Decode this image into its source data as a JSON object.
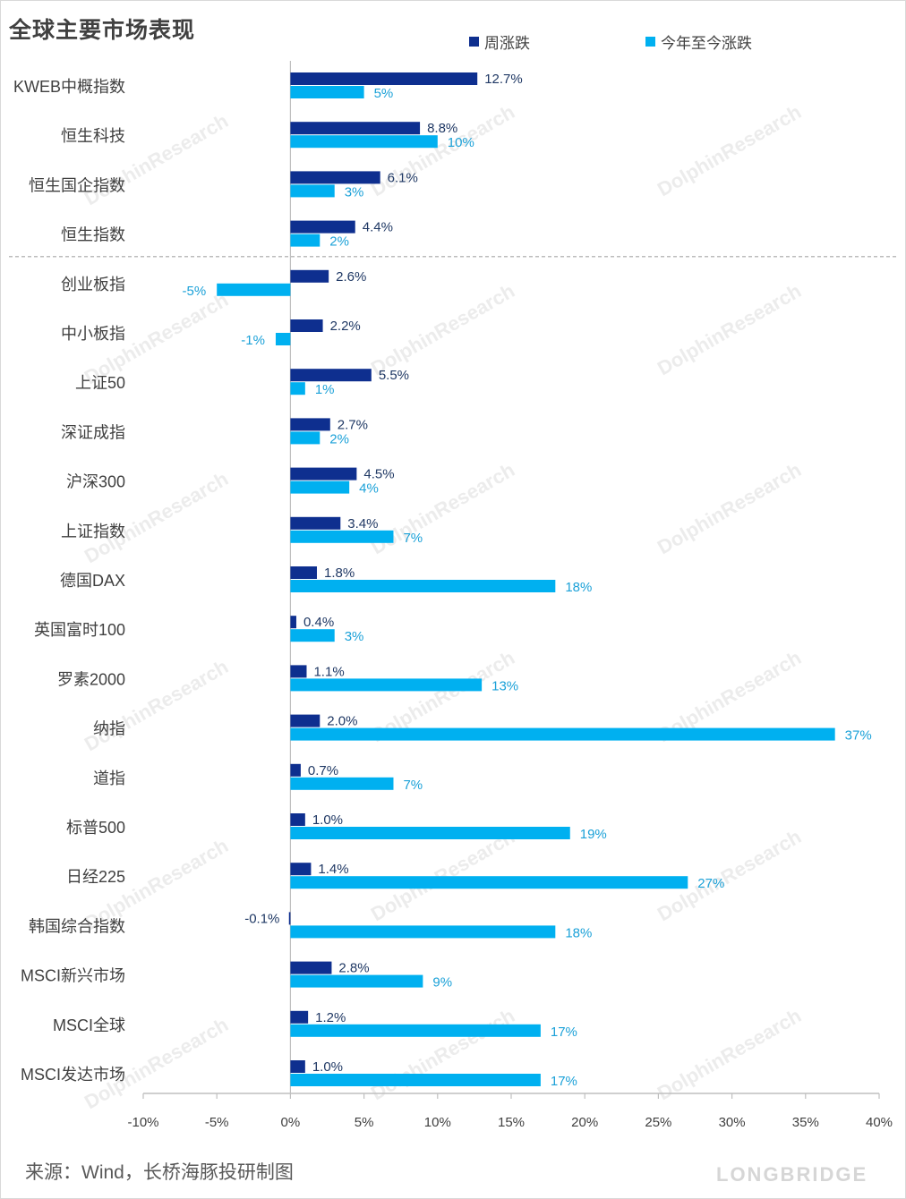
{
  "header": {
    "title": "全球主要市场表现"
  },
  "footer": {
    "source": "来源：Wind，长桥海豚投研制图",
    "brand": "LONGBRIDGE"
  },
  "watermark": {
    "text": "DolphinResearch"
  },
  "colors": {
    "weekly": "#0e2f8f",
    "ytd": "#00b0f0",
    "axis": "#bfbfbf",
    "divider": "#a6a6a6"
  },
  "chart_data": {
    "type": "bar",
    "orientation": "horizontal",
    "title": "全球主要市场表现",
    "categories": [
      "KWEB中概指数",
      "恒生科技",
      "恒生国企指数",
      "恒生指数",
      "创业板指",
      "中小板指",
      "上证50",
      "深证成指",
      "沪深300",
      "上证指数",
      "德国DAX",
      "英国富时100",
      "罗素2000",
      "纳指",
      "道指",
      "标普500",
      "日经225",
      "韩国综合指数",
      "MSCI新兴市场",
      "MSCI全球",
      "MSCI发达市场"
    ],
    "series": [
      {
        "name": "周涨跌",
        "values": [
          12.7,
          8.8,
          6.1,
          4.4,
          2.6,
          2.2,
          5.5,
          2.7,
          4.5,
          3.4,
          1.8,
          0.4,
          1.1,
          2.0,
          0.7,
          1.0,
          1.4,
          -0.1,
          2.8,
          1.2,
          1.0
        ],
        "labels": [
          "12.7%",
          "8.8%",
          "6.1%",
          "4.4%",
          "2.6%",
          "2.2%",
          "5.5%",
          "2.7%",
          "4.5%",
          "3.4%",
          "1.8%",
          "0.4%",
          "1.1%",
          "2.0%",
          "0.7%",
          "1.0%",
          "1.4%",
          "-0.1%",
          "2.8%",
          "1.2%",
          "1.0%"
        ]
      },
      {
        "name": "今年至今涨跌",
        "values": [
          5,
          10,
          3,
          2,
          -5,
          -1,
          1,
          2,
          4,
          7,
          18,
          3,
          13,
          37,
          7,
          19,
          27,
          18,
          9,
          17,
          17
        ],
        "labels": [
          "5%",
          "10%",
          "3%",
          "2%",
          "-5%",
          "-1%",
          "1%",
          "2%",
          "4%",
          "7%",
          "18%",
          "3%",
          "13%",
          "37%",
          "7%",
          "19%",
          "27%",
          "18%",
          "9%",
          "17%",
          "17%"
        ]
      }
    ],
    "xlim": [
      -10,
      40
    ],
    "xticks": [
      -10,
      -5,
      0,
      5,
      10,
      15,
      20,
      25,
      30,
      35,
      40
    ],
    "xtick_labels": [
      "-10%",
      "-5%",
      "0%",
      "5%",
      "10%",
      "15%",
      "20%",
      "25%",
      "30%",
      "35%",
      "40%"
    ],
    "legend": "top",
    "divider_after_category_index": 3,
    "grid": false
  }
}
